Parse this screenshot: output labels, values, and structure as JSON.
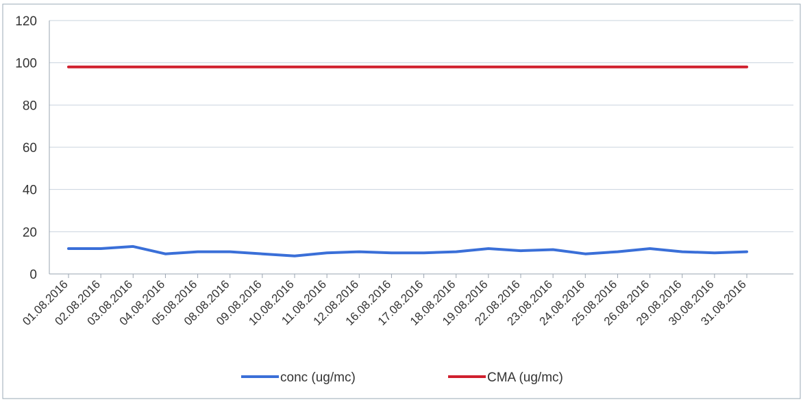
{
  "chart_data": {
    "type": "line",
    "categories": [
      "01.08.2016",
      "02.08.2016",
      "03.08.2016",
      "04.08.2016",
      "05.08.2016",
      "08.08.2016",
      "09.08.2016",
      "10.08.2016",
      "11.08.2016",
      "12.08.2016",
      "16.08.2016",
      "17.08.2016",
      "18.08.2016",
      "19.08.2016",
      "22.08.2016",
      "23.08.2016",
      "24.08.2016",
      "25.08.2016",
      "26.08.2016",
      "29.08.2016",
      "30.08.2016",
      "31.08.2016"
    ],
    "series": [
      {
        "name": "conc (ug/mc)",
        "color": "#3a6fd8",
        "values": [
          12,
          12,
          13,
          9.5,
          10.5,
          10.5,
          9.5,
          8.5,
          10,
          10.5,
          10,
          10,
          10.5,
          12,
          11,
          11.5,
          9.5,
          10.5,
          12,
          10.5,
          10,
          10.5
        ]
      },
      {
        "name": "CMA (ug/mc)",
        "color": "#d0202e",
        "values": [
          98,
          98,
          98,
          98,
          98,
          98,
          98,
          98,
          98,
          98,
          98,
          98,
          98,
          98,
          98,
          98,
          98,
          98,
          98,
          98,
          98,
          98
        ]
      }
    ],
    "ylim": [
      0,
      120
    ],
    "yticks": [
      0,
      20,
      40,
      60,
      80,
      100,
      120
    ],
    "grid": true,
    "legend_position": "bottom"
  }
}
